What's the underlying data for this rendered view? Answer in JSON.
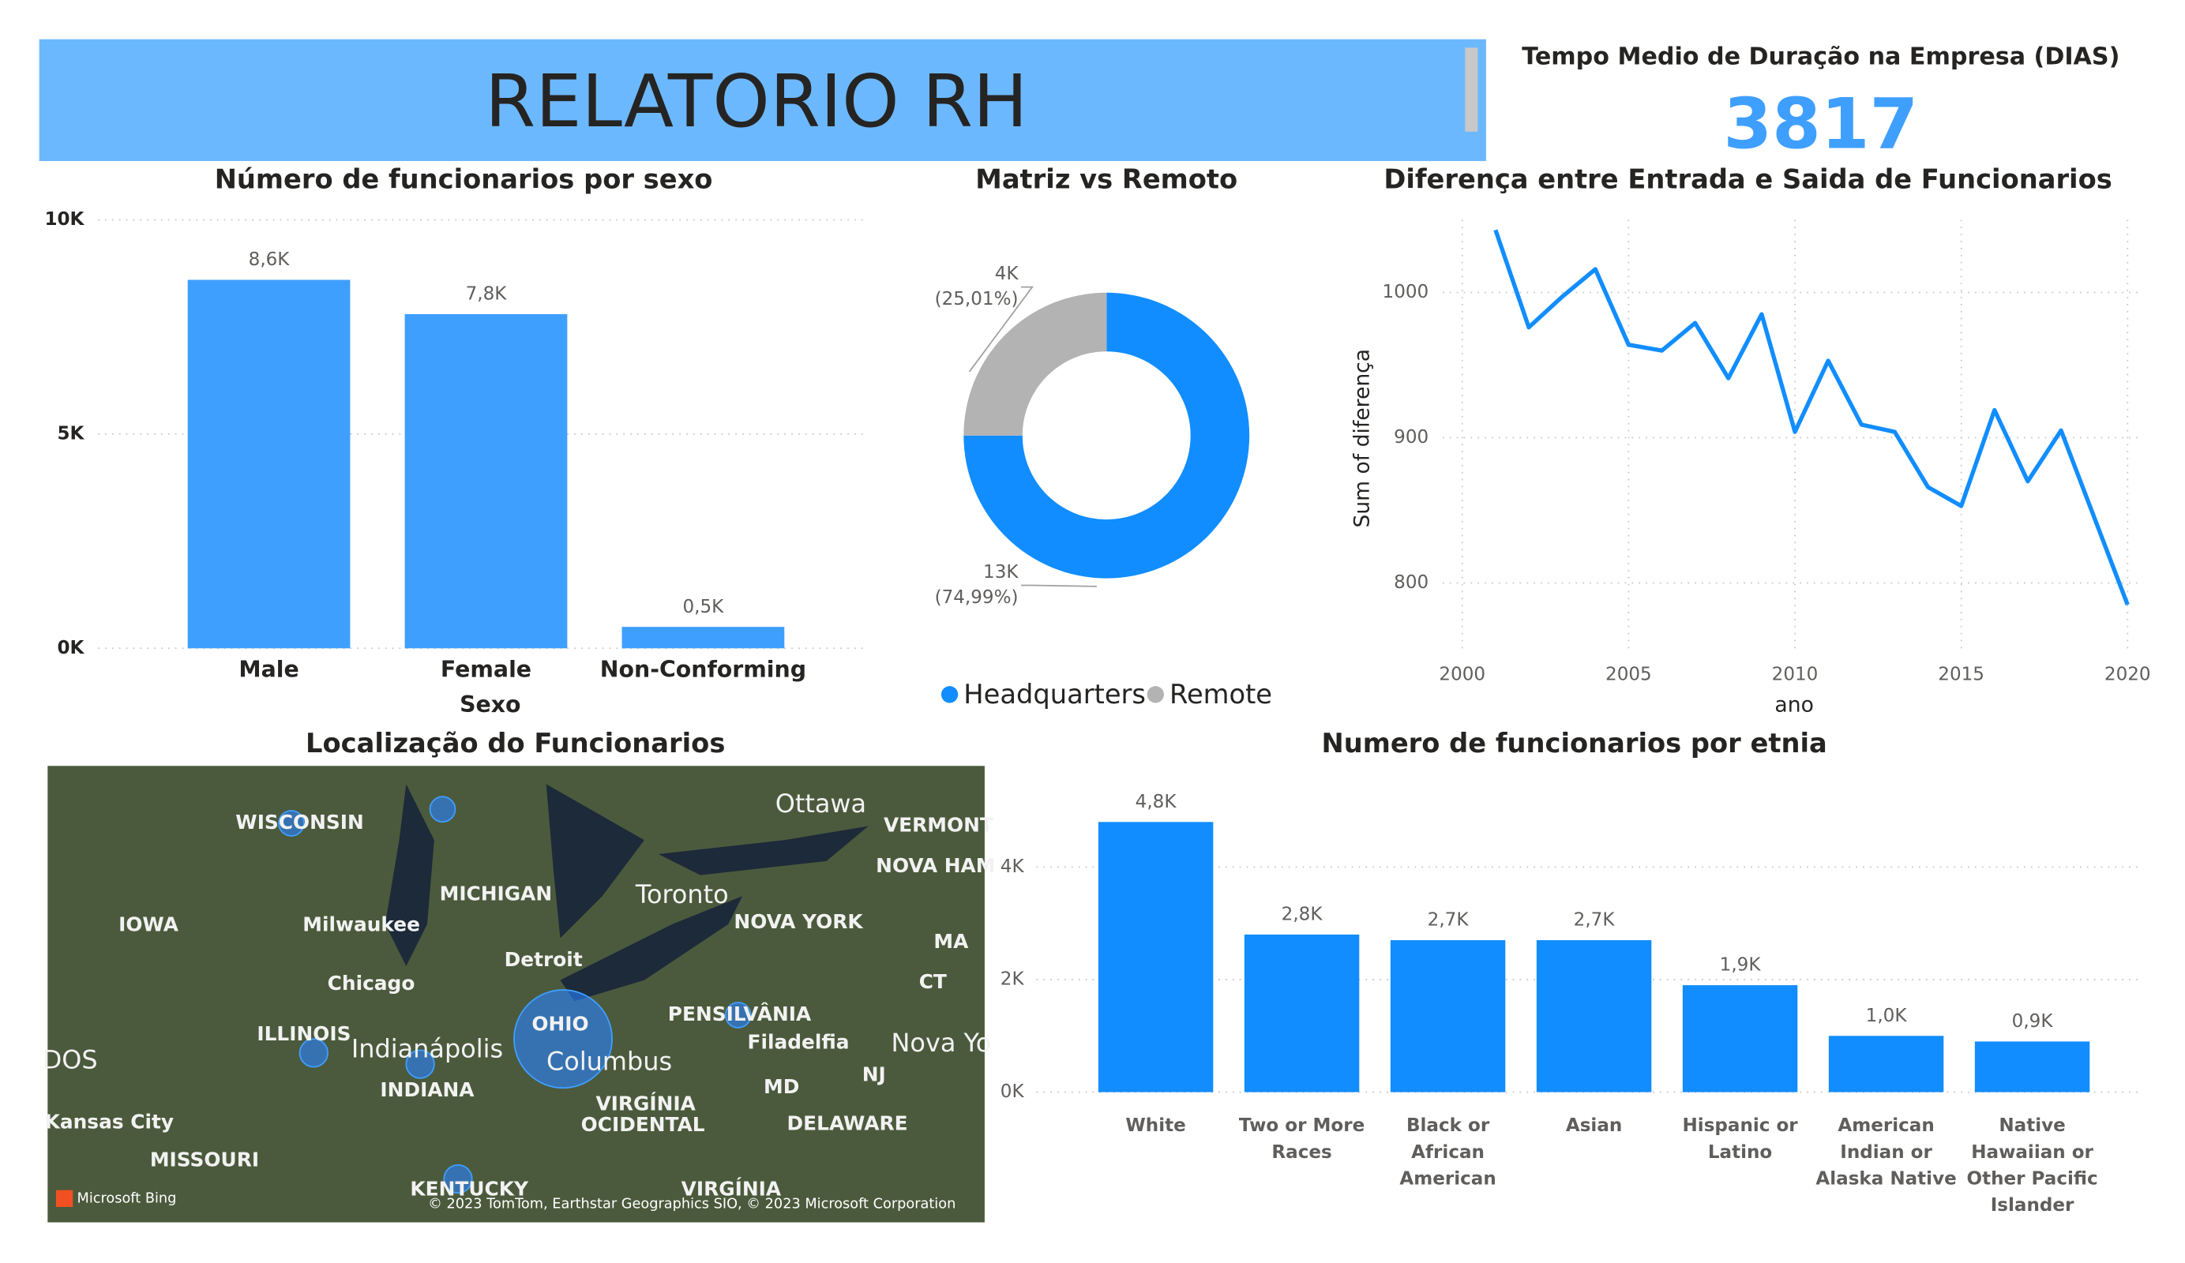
{
  "header": {
    "title": "RELATORIO RH"
  },
  "kpi": {
    "label": "Tempo Medio de Duração na Empresa (DIAS)",
    "value": 3817
  },
  "chart_data": [
    {
      "type": "bar",
      "title": "Número de funcionarios por sexo",
      "x_label": "Sexo",
      "categories": [
        "Male",
        "Female",
        "Non-Conforming"
      ],
      "values": [
        8600,
        7800,
        500
      ],
      "value_labels": [
        "8,6K",
        "7,8K",
        "0,5K"
      ],
      "color": "#3f9fff",
      "ylim": [
        0,
        10000
      ],
      "yticks": [
        {
          "value": 0,
          "label": "0K"
        },
        {
          "value": 5000,
          "label": "5K"
        },
        {
          "value": 10000,
          "label": "10K"
        }
      ],
      "grid": true
    },
    {
      "type": "donut",
      "title": "Matriz vs Remoto",
      "categories": [
        "Headquarters",
        "Remote"
      ],
      "values": [
        13000,
        4000
      ],
      "value_labels": [
        "13K",
        "4K"
      ],
      "percents": [
        74.99,
        25.01
      ],
      "percent_labels": [
        "(74,99%)",
        "(25,01%)"
      ],
      "colors": [
        "#118dff",
        "#b3b3b3"
      ],
      "legend": "bottom"
    },
    {
      "type": "line",
      "title": "Diferença entre Entrada e Saida de Funcionarios",
      "x_label": "ano",
      "y_label": "Sum of diferença",
      "x": [
        2001,
        2002,
        2003,
        2004,
        2005,
        2006,
        2007,
        2008,
        2009,
        2010,
        2011,
        2012,
        2013,
        2014,
        2015,
        2016,
        2017,
        2018,
        2019,
        2020
      ],
      "values": [
        1043,
        976,
        997,
        1016,
        964,
        960,
        979,
        941,
        985,
        904,
        953,
        909,
        904,
        866,
        853,
        919,
        870,
        905,
        845,
        785
      ],
      "color": "#118dff",
      "xlim": [
        2000,
        2020
      ],
      "xticks": [
        2000,
        2005,
        2010,
        2015,
        2020
      ],
      "ylim": [
        755,
        1050
      ],
      "yticks": [
        800,
        900,
        1000
      ],
      "grid": true
    },
    {
      "type": "bar",
      "title": "Numero de funcionarios por etnia",
      "categories": [
        "White",
        "Two or More Races",
        "Black or African American",
        "Asian",
        "Hispanic or Latino",
        "American Indian or Alaska Native",
        "Native Hawaiian or Other Pacific Islander"
      ],
      "values": [
        4800,
        2800,
        2700,
        2700,
        1900,
        1000,
        900
      ],
      "value_labels": [
        "4,8K",
        "2,8K",
        "2,7K",
        "2,7K",
        "1,9K",
        "1,0K",
        "0,9K"
      ],
      "color": "#118dff",
      "ylim": [
        0,
        5000
      ],
      "yticks": [
        {
          "value": 0,
          "label": "0K"
        },
        {
          "value": 2000,
          "label": "2K"
        },
        {
          "value": 4000,
          "label": "4K"
        }
      ],
      "grid": true
    }
  ],
  "map": {
    "title": "Localização do Funcionarios",
    "labels": [
      "WISCONSIN",
      "MICHIGAN",
      "Ottawa",
      "VERMONT",
      "NOVA HAM",
      "Toronto",
      "IOWA",
      "Milwaukee",
      "NOVA YORK",
      "MA",
      "Detroit",
      "Chicago",
      "CT",
      "PENSILVÂNIA",
      "ILLINOIS",
      "OHIO",
      "Indianápolis",
      "Filadelfia",
      "Nova Yo",
      "Columbus",
      "INDIANA",
      "NJ",
      "MD",
      "VIRGÍNIA",
      "OCIDENTAL",
      "DELAWARE",
      "Kansas City",
      "MISSOURI",
      "KENTUCKY",
      "VIRGÍNIA",
      "DOS"
    ],
    "brand": "Microsoft Bing",
    "copyright": "© 2023 TomTom, Earthstar Geographics SIO, © 2023 Microsoft Corporation"
  }
}
